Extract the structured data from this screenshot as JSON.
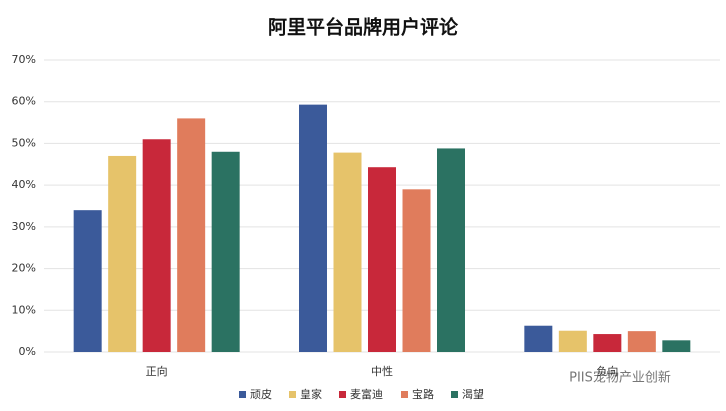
{
  "chart_data": {
    "type": "bar",
    "title": "阿里平台品牌用户评论",
    "categories": [
      "正向",
      "中性",
      "负向"
    ],
    "series": [
      {
        "name": "顽皮",
        "color": "#3b5a9a",
        "values": [
          34,
          59.3,
          6.3
        ]
      },
      {
        "name": "皇家",
        "color": "#e6c36a",
        "values": [
          47,
          47.8,
          5.1
        ]
      },
      {
        "name": "麦富迪",
        "color": "#c8283a",
        "values": [
          51,
          44.3,
          4.3
        ]
      },
      {
        "name": "宝路",
        "color": "#e07c5c",
        "values": [
          56,
          39,
          5
        ]
      },
      {
        "name": "渴望",
        "color": "#2b7262",
        "values": [
          48,
          48.8,
          2.8
        ]
      }
    ],
    "ylim": [
      0,
      70
    ],
    "yticks": [
      {
        "value": 0,
        "label": "0%"
      },
      {
        "value": 10,
        "label": "10%"
      },
      {
        "value": 20,
        "label": "20%"
      },
      {
        "value": 30,
        "label": "30%"
      },
      {
        "value": 40,
        "label": "40%"
      },
      {
        "value": 50,
        "label": "50%"
      },
      {
        "value": 60,
        "label": "60%"
      },
      {
        "value": 70,
        "label": "70%"
      }
    ],
    "grid": true,
    "legend": "bottom",
    "footer": "PIIS宠物产业创新"
  }
}
